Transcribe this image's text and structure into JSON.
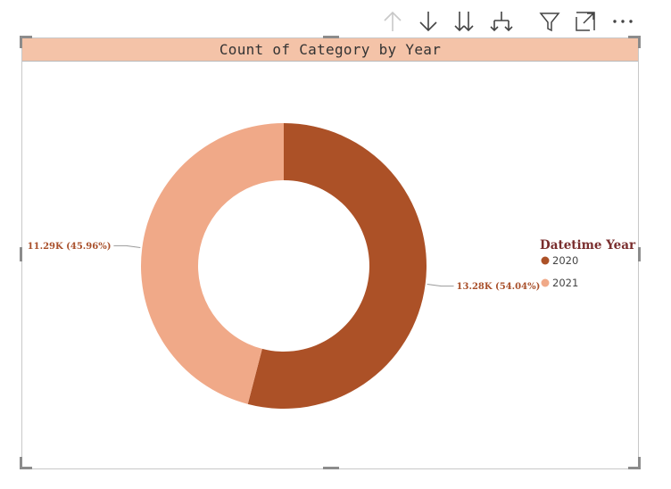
{
  "toolbar": {
    "icons": [
      "drill-up-icon",
      "drill-down-icon",
      "expand-next-level-icon",
      "expand-all-icon",
      "filter-icon",
      "focus-mode-icon",
      "more-options-icon"
    ]
  },
  "colors": {
    "title_bg": "#f4c3a8",
    "series_2020": "#ac5127",
    "series_2021": "#f0a988",
    "legend_title": "#7a2e2e",
    "label": "#a9502b"
  },
  "chart_data": {
    "type": "pie",
    "variant": "donut",
    "title": "Count of Category by Year",
    "legend": {
      "title": "Datetime Year",
      "placement": "right"
    },
    "slices": [
      {
        "name": "2020",
        "value": 13280,
        "label": "13.28K (54.04%)",
        "color": "#ac5127"
      },
      {
        "name": "2021",
        "value": 11290,
        "label": "11.29K (45.96%)",
        "color": "#f0a988"
      }
    ]
  }
}
